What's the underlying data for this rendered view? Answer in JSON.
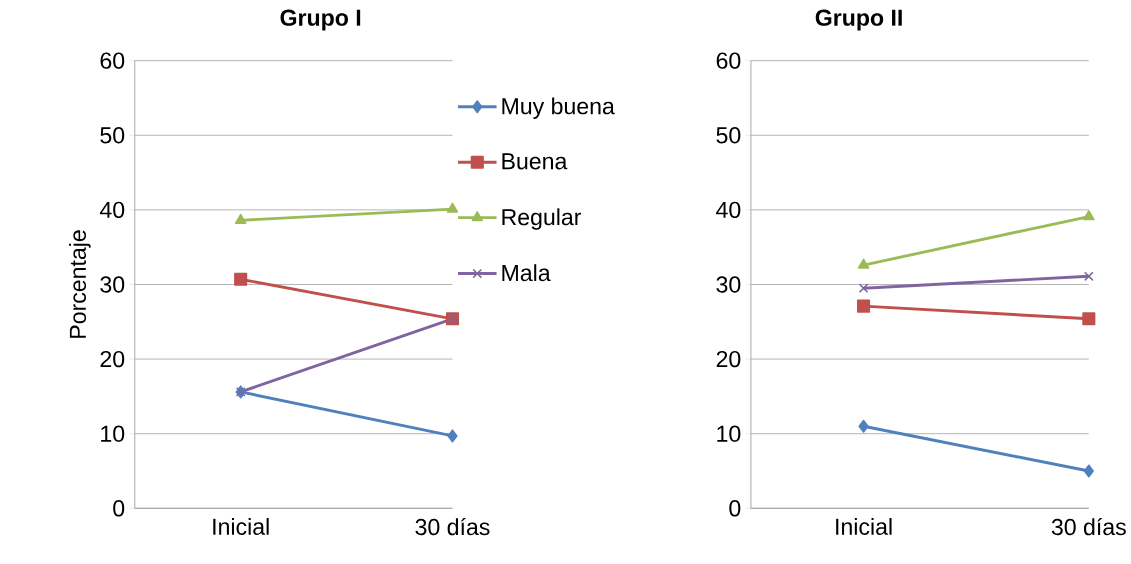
{
  "chart_data": [
    {
      "type": "line",
      "title": "Grupo I",
      "ylabel": "Porcentaje",
      "categories": [
        "Inicial",
        "30 días"
      ],
      "ylim": [
        0,
        60
      ],
      "yticks": [
        0,
        10,
        20,
        30,
        40,
        50,
        60
      ],
      "grid": "y",
      "legend": "right",
      "line_style": "solid",
      "series": [
        {
          "name": "Muy buena",
          "color": "#4f81bd",
          "marker": "diamond",
          "values": [
            15.6,
            9.7
          ]
        },
        {
          "name": "Buena",
          "color": "#c0504d",
          "marker": "square",
          "values": [
            30.7,
            25.4
          ]
        },
        {
          "name": "Regular",
          "color": "#9bbb59",
          "marker": "triangle",
          "values": [
            38.6,
            40.1
          ]
        },
        {
          "name": "Mala",
          "color": "#8064a2",
          "marker": "cross",
          "values": [
            15.6,
            25.4
          ]
        }
      ]
    },
    {
      "type": "line",
      "title": "Grupo II",
      "categories": [
        "Inicial",
        "30 días"
      ],
      "ylim": [
        0,
        60
      ],
      "yticks": [
        0,
        10,
        20,
        30,
        40,
        50,
        60
      ],
      "grid": "y",
      "line_style": "solid",
      "series": [
        {
          "color": "#4f81bd",
          "marker": "diamond",
          "values": [
            11.0,
            5.0
          ]
        },
        {
          "color": "#c0504d",
          "marker": "square",
          "values": [
            27.1,
            25.4
          ]
        },
        {
          "color": "#9bbb59",
          "marker": "triangle",
          "values": [
            32.6,
            39.1
          ]
        },
        {
          "color": "#8064a2",
          "marker": "cross",
          "values": [
            29.5,
            31.1
          ]
        }
      ]
    }
  ]
}
